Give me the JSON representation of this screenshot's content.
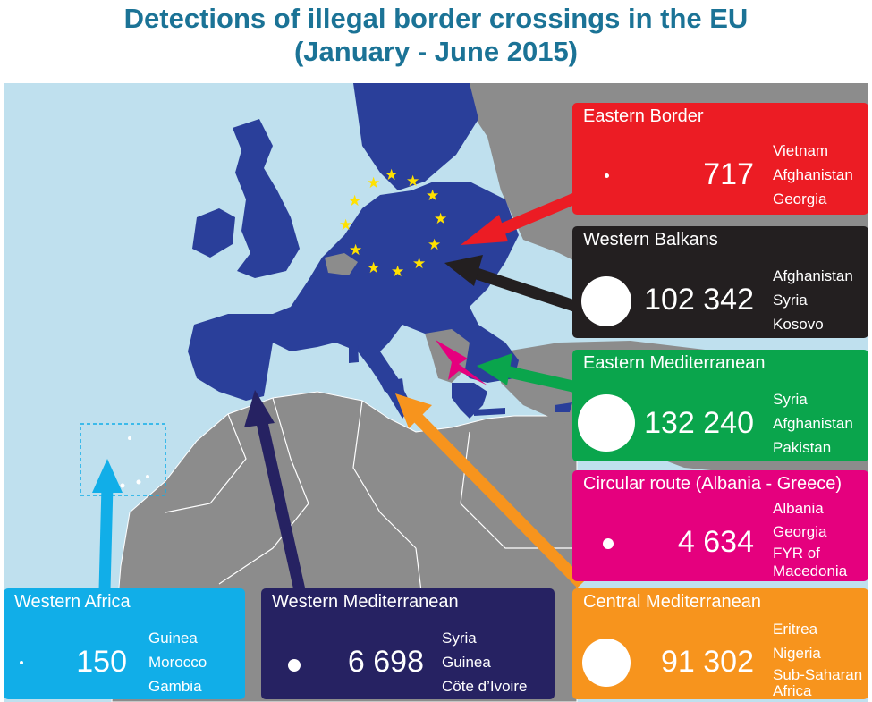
{
  "title": {
    "line1": "Detections of illegal border crossings in the EU",
    "line2": "(January - June 2015)"
  },
  "colors": {
    "title": "#1b7396",
    "sea": "#bfe0ee",
    "land_non_eu": "#8c8c8c",
    "eu": "#2a3f9a",
    "eu_star": "#ffe100",
    "eastern_border": "#ec1c24",
    "western_balkans": "#231f20",
    "eastern_mediterranean": "#0aa54c",
    "circular_route": "#e5007e",
    "central_mediterranean": "#f7941d",
    "western_mediterranean": "#262262",
    "western_africa": "#11aee8"
  },
  "routes": [
    {
      "id": "eastern-border",
      "name": "Eastern Border",
      "value": "717",
      "countries": [
        "Vietnam",
        "Afghanistan",
        "Georgia"
      ]
    },
    {
      "id": "western-balkans",
      "name": "Western Balkans",
      "value": "102 342",
      "countries": [
        "Afghanistan",
        "Syria",
        "Kosovo"
      ]
    },
    {
      "id": "eastern-mediterranean",
      "name": "Eastern Mediterranean",
      "value": "132 240",
      "countries": [
        "Syria",
        "Afghanistan",
        "Pakistan"
      ]
    },
    {
      "id": "circular-route",
      "name": "Circular route (Albania - Greece)",
      "value": "4 634",
      "countries": [
        "Albania",
        "Georgia",
        "FYR of",
        "Macedonia"
      ]
    },
    {
      "id": "central-mediterranean",
      "name": "Central Mediterranean",
      "value": "91 302",
      "countries": [
        "Eritrea",
        "Nigeria",
        "Sub-Saharan",
        "Africa"
      ]
    },
    {
      "id": "western-mediterranean",
      "name": "Western Mediterranean",
      "value": "6 698",
      "countries": [
        "Syria",
        "Guinea",
        "Côte d’Ivoire"
      ]
    },
    {
      "id": "western-africa",
      "name": "Western Africa",
      "value": "150",
      "countries": [
        "Guinea",
        "Morocco",
        "Gambia"
      ]
    }
  ]
}
